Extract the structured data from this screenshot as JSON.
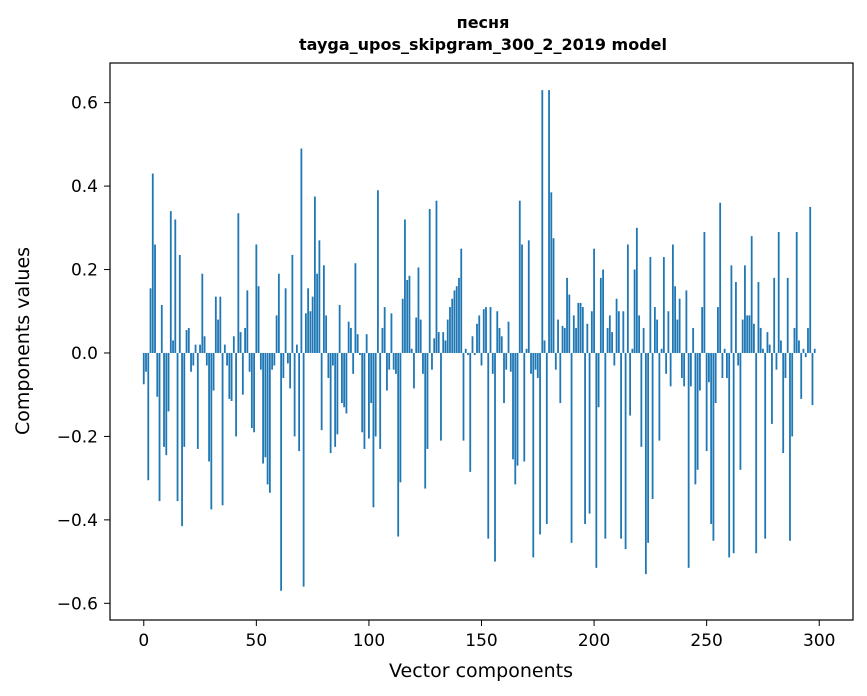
{
  "chart_data": {
    "type": "bar",
    "title": "песня",
    "subtitle": "tayga_upos_skipgram_300_2_2019 model",
    "xlabel": "Vector components",
    "ylabel": "Components values",
    "xlim": [
      -15,
      315
    ],
    "ylim": [
      -0.64,
      0.695
    ],
    "xticks": [
      0,
      50,
      100,
      150,
      200,
      250,
      300
    ],
    "xtick_labels": [
      "0",
      "50",
      "100",
      "150",
      "200",
      "250",
      "300"
    ],
    "yticks": [
      -0.6,
      -0.4,
      -0.2,
      0.0,
      0.2,
      0.4,
      0.6
    ],
    "ytick_labels": [
      "−0.6",
      "−0.4",
      "−0.2",
      "0.0",
      "0.2",
      "0.4",
      "0.6"
    ],
    "grid": false,
    "bar_color": "#1f77b4",
    "x": "0..299",
    "values": [
      -0.075,
      -0.045,
      -0.305,
      0.155,
      0.43,
      0.26,
      -0.105,
      -0.355,
      0.115,
      -0.225,
      -0.245,
      -0.14,
      0.34,
      0.03,
      0.32,
      -0.355,
      0.235,
      -0.415,
      -0.225,
      0.055,
      0.06,
      -0.045,
      -0.03,
      0.02,
      -0.23,
      0.02,
      0.19,
      0.04,
      -0.03,
      -0.26,
      -0.375,
      -0.09,
      0.135,
      0.08,
      0.135,
      -0.365,
      0.02,
      -0.03,
      -0.11,
      -0.115,
      0.04,
      -0.2,
      0.335,
      0.05,
      -0.1,
      0.06,
      0.15,
      -0.045,
      -0.18,
      -0.19,
      0.26,
      0.16,
      -0.04,
      -0.265,
      -0.25,
      -0.315,
      -0.335,
      -0.04,
      -0.03,
      0.09,
      0.19,
      -0.57,
      -0.06,
      0.155,
      -0.025,
      -0.085,
      0.235,
      -0.2,
      0.02,
      -0.235,
      0.49,
      -0.56,
      0.095,
      0.155,
      0.1,
      0.135,
      0.375,
      0.19,
      0.27,
      -0.185,
      0.21,
      0.09,
      -0.06,
      -0.24,
      -0.03,
      -0.225,
      -0.195,
      0.115,
      -0.12,
      -0.13,
      -0.145,
      0.075,
      0.06,
      -0.05,
      0.215,
      0.045,
      -0.005,
      -0.19,
      -0.23,
      0.045,
      -0.205,
      -0.12,
      -0.37,
      -0.2,
      0.39,
      -0.23,
      0.06,
      0.11,
      -0.09,
      -0.04,
      0.095,
      -0.04,
      -0.05,
      -0.44,
      -0.31,
      0.13,
      0.32,
      0.175,
      0.185,
      0.01,
      -0.085,
      0.085,
      0.205,
      0.08,
      -0.05,
      -0.325,
      -0.23,
      0.345,
      -0.04,
      0.035,
      0.365,
      0.05,
      -0.21,
      0.05,
      0.03,
      0.08,
      0.11,
      0.13,
      0.15,
      0.16,
      0.18,
      0.25,
      -0.21,
      0.01,
      -0.005,
      -0.285,
      0.04,
      -0.005,
      0.07,
      0.09,
      -0.03,
      0.105,
      0.11,
      -0.445,
      0.11,
      -0.05,
      -0.5,
      0.1,
      0.06,
      0.04,
      -0.12,
      -0.04,
      0.075,
      -0.045,
      -0.255,
      -0.315,
      -0.27,
      0.365,
      0.26,
      -0.26,
      0.01,
      0.27,
      -0.05,
      -0.49,
      -0.04,
      -0.06,
      -0.435,
      0.63,
      0.03,
      -0.41,
      0.63,
      0.385,
      0.275,
      -0.04,
      0.08,
      -0.12,
      0.065,
      0.06,
      0.18,
      0.14,
      -0.455,
      0.09,
      0.06,
      0.12,
      0.12,
      0.11,
      -0.41,
      0.07,
      -0.385,
      0.1,
      0.25,
      -0.515,
      -0.13,
      0.18,
      0.2,
      -0.445,
      0.06,
      0.09,
      0.05,
      -0.03,
      0.13,
      0.1,
      -0.445,
      0.1,
      -0.47,
      0.26,
      -0.15,
      0.01,
      0.2,
      0.3,
      0.09,
      -0.225,
      0.06,
      -0.53,
      -0.455,
      0.23,
      -0.35,
      0.11,
      0.08,
      -0.21,
      0.01,
      0.23,
      -0.05,
      0.1,
      -0.08,
      0.26,
      0.16,
      0.08,
      0.13,
      -0.06,
      -0.08,
      0.15,
      -0.515,
      -0.08,
      0.06,
      -0.315,
      -0.28,
      -0.09,
      0.11,
      0.29,
      -0.235,
      -0.07,
      -0.41,
      -0.45,
      -0.12,
      0.11,
      0.36,
      -0.06,
      0.01,
      -0.06,
      -0.49,
      0.21,
      -0.48,
      0.17,
      -0.03,
      -0.28,
      0.08,
      0.21,
      0.09,
      0.09,
      0.28,
      0.07,
      -0.48,
      0.17,
      0.06,
      0.01,
      -0.445,
      0.05,
      0.02,
      -0.17,
      0.18,
      -0.04,
      0.29,
      0.03,
      -0.24,
      -0.06,
      0.18,
      -0.45,
      -0.2,
      0.06,
      0.29,
      0.03,
      -0.11,
      0.01,
      -0.01,
      0.06,
      0.35,
      -0.125,
      0.01,
      0.0
    ]
  }
}
